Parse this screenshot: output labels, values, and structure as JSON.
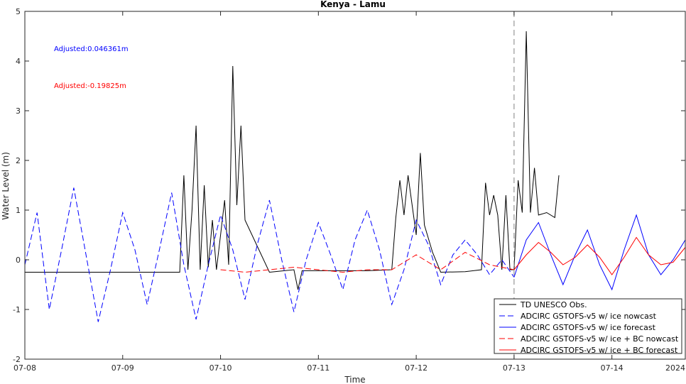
{
  "chart_data": {
    "type": "line",
    "title": "Kenya - Lamu",
    "xlabel": "Time",
    "ylabel": "Water Level (m)",
    "xlim": [
      "07-08",
      "07-14T18:00"
    ],
    "ylim": [
      -2,
      5
    ],
    "x_ticks": [
      "07-08",
      "07-09",
      "07-10",
      "07-11",
      "07-12",
      "07-13",
      "07-14"
    ],
    "y_ticks": [
      -2,
      -1,
      0,
      1,
      2,
      3,
      4,
      5
    ],
    "year_label": "2024",
    "grid": false,
    "legend_position": "bottom-right",
    "forecast_start": "07-13",
    "annotations": [
      {
        "text": "Adjusted:0.046361m",
        "color": "#0000ff"
      },
      {
        "text": "Adjusted:-0.19825m",
        "color": "#ff0000"
      }
    ],
    "series": [
      {
        "name": "TD UNESCO Obs.",
        "color": "#000000",
        "style": "solid",
        "x": [
          "07-08T00:00",
          "07-09T14:00",
          "07-09T15:00",
          "07-09T16:00",
          "07-09T17:00",
          "07-09T18:00",
          "07-09T19:00",
          "07-09T20:00",
          "07-09T21:00",
          "07-09T22:00",
          "07-09T23:00",
          "07-10T00:00",
          "07-10T01:00",
          "07-10T02:00",
          "07-10T03:00",
          "07-10T04:00",
          "07-10T05:00",
          "07-10T06:00",
          "07-10T12:00",
          "07-10T18:00",
          "07-10T19:00",
          "07-10T20:00",
          "07-11T00:00",
          "07-11T12:00",
          "07-11T18:00",
          "07-11T19:00",
          "07-11T20:00",
          "07-11T21:00",
          "07-11T22:00",
          "07-12T00:00",
          "07-12T01:00",
          "07-12T02:00",
          "07-12T04:00",
          "07-12T06:00",
          "07-12T12:00",
          "07-12T16:00",
          "07-12T17:00",
          "07-12T18:00",
          "07-12T19:00",
          "07-12T20:00",
          "07-12T21:00",
          "07-12T22:00",
          "07-12T23:00",
          "07-13T00:00",
          "07-13T01:00",
          "07-13T02:00",
          "07-13T03:00",
          "07-13T04:00",
          "07-13T05:00",
          "07-13T06:00",
          "07-13T08:00",
          "07-13T10:00",
          "07-13T11:00"
        ],
        "y": [
          -0.25,
          -0.25,
          1.7,
          -0.2,
          1.0,
          2.7,
          -0.2,
          1.5,
          -0.15,
          0.8,
          -0.2,
          0.5,
          1.2,
          -0.1,
          3.9,
          1.1,
          2.7,
          0.8,
          -0.25,
          -0.2,
          -0.6,
          -0.22,
          -0.22,
          -0.22,
          -0.2,
          0.85,
          1.6,
          0.9,
          1.7,
          0.5,
          2.15,
          0.7,
          0.15,
          -0.25,
          -0.24,
          -0.2,
          1.55,
          0.9,
          1.3,
          0.9,
          -0.2,
          1.3,
          -0.2,
          -0.2,
          1.6,
          0.95,
          4.6,
          0.95,
          1.85,
          0.9,
          0.95,
          0.85,
          1.7
        ]
      },
      {
        "name": "ADCIRC GSTOFS-v5 w/ ice nowcast",
        "color": "#0000ff",
        "style": "dashed",
        "x": [
          "07-08T00:00",
          "07-08T03:00",
          "07-08T06:00",
          "07-08T09:00",
          "07-08T12:00",
          "07-08T15:00",
          "07-08T18:00",
          "07-08T21:00",
          "07-09T00:00",
          "07-09T03:00",
          "07-09T06:00",
          "07-09T09:00",
          "07-09T12:00",
          "07-09T15:00",
          "07-09T18:00",
          "07-09T21:00",
          "07-10T00:00",
          "07-10T03:00",
          "07-10T06:00",
          "07-10T09:00",
          "07-10T12:00",
          "07-10T15:00",
          "07-10T18:00",
          "07-10T21:00",
          "07-11T00:00",
          "07-11T03:00",
          "07-11T06:00",
          "07-11T09:00",
          "07-11T12:00",
          "07-11T15:00",
          "07-11T18:00",
          "07-11T21:00",
          "07-12T00:00",
          "07-12T03:00",
          "07-12T06:00",
          "07-12T09:00",
          "07-12T12:00",
          "07-12T15:00",
          "07-12T18:00",
          "07-12T21:00",
          "07-13T00:00"
        ],
        "y": [
          -0.1,
          0.95,
          -1.0,
          0.2,
          1.45,
          0.1,
          -1.25,
          -0.2,
          0.95,
          0.2,
          -0.9,
          0.2,
          1.35,
          -0.1,
          -1.2,
          -0.1,
          0.9,
          0.2,
          -0.8,
          0.3,
          1.2,
          0.0,
          -1.05,
          0.0,
          0.75,
          0.1,
          -0.6,
          0.4,
          1.0,
          0.2,
          -0.9,
          -0.2,
          0.8,
          0.3,
          -0.5,
          0.1,
          0.4,
          0.1,
          -0.3,
          0.0,
          -0.35
        ]
      },
      {
        "name": "ADCIRC GSTOFS-v5 w/ ice forecast",
        "color": "#0000ff",
        "style": "solid",
        "x": [
          "07-13T00:00",
          "07-13T03:00",
          "07-13T06:00",
          "07-13T09:00",
          "07-13T12:00",
          "07-13T15:00",
          "07-13T18:00",
          "07-13T21:00",
          "07-14T00:00",
          "07-14T03:00",
          "07-14T06:00",
          "07-14T09:00",
          "07-14T12:00",
          "07-14T15:00",
          "07-14T18:00"
        ],
        "y": [
          -0.35,
          0.4,
          0.75,
          0.1,
          -0.5,
          0.1,
          0.6,
          -0.1,
          -0.6,
          0.2,
          0.9,
          0.1,
          -0.3,
          0.0,
          0.4
        ]
      },
      {
        "name": "ADCIRC GSTOFS-v5 w/ ice + BC nowcast",
        "color": "#ff0000",
        "style": "dashed",
        "x": [
          "07-10T00:00",
          "07-10T06:00",
          "07-10T12:00",
          "07-10T18:00",
          "07-11T00:00",
          "07-11T06:00",
          "07-11T12:00",
          "07-11T18:00",
          "07-12T00:00",
          "07-12T06:00",
          "07-12T12:00",
          "07-12T18:00",
          "07-13T00:00"
        ],
        "y": [
          -0.2,
          -0.25,
          -0.2,
          -0.15,
          -0.2,
          -0.25,
          -0.2,
          -0.2,
          0.1,
          -0.2,
          0.15,
          -0.1,
          -0.2
        ]
      },
      {
        "name": "ADCIRC GSTOFS-v5 w/ ice + BC forecast",
        "color": "#ff0000",
        "style": "solid",
        "x": [
          "07-13T00:00",
          "07-13T03:00",
          "07-13T06:00",
          "07-13T09:00",
          "07-13T12:00",
          "07-13T15:00",
          "07-13T18:00",
          "07-13T21:00",
          "07-14T00:00",
          "07-14T03:00",
          "07-14T06:00",
          "07-14T09:00",
          "07-14T12:00",
          "07-14T15:00",
          "07-14T18:00"
        ],
        "y": [
          -0.2,
          0.1,
          0.35,
          0.15,
          -0.1,
          0.05,
          0.3,
          0.05,
          -0.3,
          0.05,
          0.45,
          0.1,
          -0.1,
          -0.05,
          0.25
        ]
      }
    ]
  }
}
